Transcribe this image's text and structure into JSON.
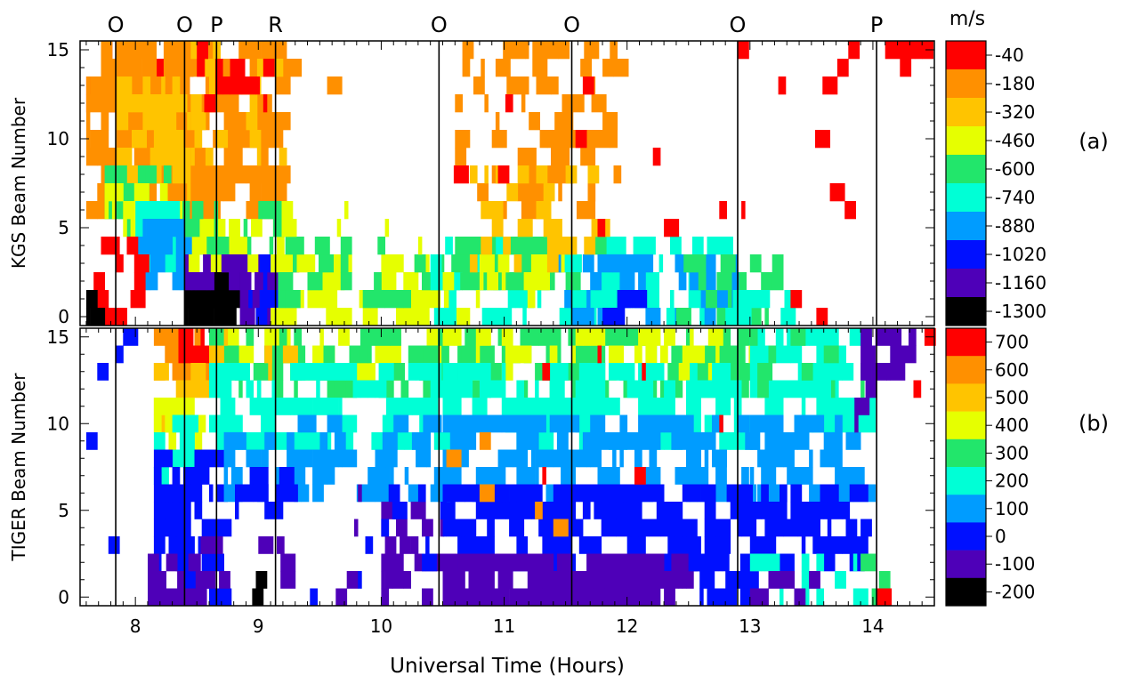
{
  "chart_data": [
    {
      "type": "heatmap",
      "panel": "(a)",
      "ylabel": "KGS Beam Number",
      "xlabel": "",
      "xlim": [
        7.55,
        14.5
      ],
      "ylim": [
        -0.5,
        15.5
      ],
      "xticks": [
        8,
        9,
        10,
        11,
        12,
        13,
        14
      ],
      "yticks": [
        0,
        5,
        10,
        15
      ],
      "colorbar": {
        "unit": "m/s",
        "levels": [
          "-40",
          "-180",
          "-320",
          "-460",
          "-600",
          "-740",
          "-880",
          "-1020",
          "-1160",
          "-1300"
        ],
        "colors": [
          "#ff0000",
          "#ff9000",
          "#ffc400",
          "#e6ff00",
          "#22e66b",
          "#00ffd6",
          "#009cff",
          "#0010ff",
          "#4e00b8",
          "#000000"
        ]
      },
      "regions": [
        {
          "x": [
            7.6,
            8.45
          ],
          "y": [
            12,
            15
          ],
          "level": "-40",
          "density": 0.6
        },
        {
          "x": [
            7.6,
            8.45
          ],
          "y": [
            6,
            15
          ],
          "level": "-180",
          "density": 0.75
        },
        {
          "x": [
            7.85,
            8.45
          ],
          "y": [
            6,
            13
          ],
          "level": "-320",
          "density": 0.5
        },
        {
          "x": [
            8.45,
            9.2
          ],
          "y": [
            6,
            15
          ],
          "level": "-180",
          "density": 0.8
        },
        {
          "x": [
            8.45,
            9.2
          ],
          "y": [
            9,
            15
          ],
          "level": "-320",
          "density": 0.35
        },
        {
          "x": [
            8.5,
            9.05
          ],
          "y": [
            11,
            15
          ],
          "level": "-40",
          "density": 0.3
        },
        {
          "x": [
            7.75,
            8.35
          ],
          "y": [
            5,
            8
          ],
          "level": "-600",
          "density": 0.55
        },
        {
          "x": [
            7.75,
            8.35
          ],
          "y": [
            5,
            7
          ],
          "level": "-460",
          "density": 0.4
        },
        {
          "x": [
            8.0,
            8.45
          ],
          "y": [
            3,
            6
          ],
          "level": "-740",
          "density": 0.7
        },
        {
          "x": [
            8.0,
            8.5
          ],
          "y": [
            2,
            5
          ],
          "level": "-880",
          "density": 0.7
        },
        {
          "x": [
            8.4,
            9.2
          ],
          "y": [
            3,
            5
          ],
          "level": "-460",
          "density": 0.6
        },
        {
          "x": [
            8.4,
            9.2
          ],
          "y": [
            4,
            6
          ],
          "level": "-600",
          "density": 0.4
        },
        {
          "x": [
            7.6,
            8.0
          ],
          "y": [
            0,
            4
          ],
          "level": "-40",
          "density": 0.45
        },
        {
          "x": [
            7.6,
            7.7
          ],
          "y": [
            0,
            1
          ],
          "level": "-1300",
          "density": 0.7
        },
        {
          "x": [
            8.4,
            8.9
          ],
          "y": [
            1,
            2
          ],
          "level": "-1300",
          "density": 0.95
        },
        {
          "x": [
            8.4,
            8.9
          ],
          "y": [
            0,
            1
          ],
          "level": "-1300",
          "density": 0.8
        },
        {
          "x": [
            8.4,
            8.9
          ],
          "y": [
            2,
            3
          ],
          "level": "-1160",
          "density": 0.7
        },
        {
          "x": [
            8.85,
            9.25
          ],
          "y": [
            0,
            3
          ],
          "level": "-1160",
          "density": 0.6
        },
        {
          "x": [
            8.8,
            9.3
          ],
          "y": [
            0,
            3
          ],
          "level": "-1020",
          "density": 0.35
        },
        {
          "x": [
            9.1,
            10.6
          ],
          "y": [
            0,
            3
          ],
          "level": "-460",
          "density": 0.55
        },
        {
          "x": [
            9.1,
            10.6
          ],
          "y": [
            1,
            4
          ],
          "level": "-600",
          "density": 0.3
        },
        {
          "x": [
            9.1,
            10.5
          ],
          "y": [
            3,
            6
          ],
          "level": "-460",
          "density": 0.12
        },
        {
          "x": [
            10.4,
            12.9
          ],
          "y": [
            0,
            4
          ],
          "level": "-740",
          "density": 0.55
        },
        {
          "x": [
            10.6,
            11.8
          ],
          "y": [
            2,
            4
          ],
          "level": "-600",
          "density": 0.55
        },
        {
          "x": [
            10.5,
            11.4
          ],
          "y": [
            1,
            3
          ],
          "level": "-460",
          "density": 0.35
        },
        {
          "x": [
            11.4,
            12.9
          ],
          "y": [
            0,
            3
          ],
          "level": "-880",
          "density": 0.4
        },
        {
          "x": [
            11.8,
            12.1
          ],
          "y": [
            0,
            1
          ],
          "level": "-1020",
          "density": 0.6
        },
        {
          "x": [
            12.4,
            13.2
          ],
          "y": [
            0,
            3
          ],
          "level": "-600",
          "density": 0.4
        },
        {
          "x": [
            12.8,
            13.3
          ],
          "y": [
            0,
            1
          ],
          "level": "-740",
          "density": 0.5
        },
        {
          "x": [
            10.6,
            11.9
          ],
          "y": [
            6,
            15
          ],
          "level": "-180",
          "density": 0.35
        },
        {
          "x": [
            10.6,
            11.9
          ],
          "y": [
            3,
            8
          ],
          "level": "-320",
          "density": 0.25
        },
        {
          "x": [
            9.2,
            9.8
          ],
          "y": [
            12,
            15
          ],
          "level": "-180",
          "density": 0.07
        },
        {
          "x": [
            10.5,
            14.0
          ],
          "y": [
            3,
            15
          ],
          "level": "-40",
          "density": 0.045
        },
        {
          "x": [
            13.8,
            14.45
          ],
          "y": [
            14,
            15
          ],
          "level": "-40",
          "density": 0.35
        },
        {
          "x": [
            13.3,
            13.6
          ],
          "y": [
            0,
            1
          ],
          "level": "-40",
          "density": 0.3
        }
      ]
    },
    {
      "type": "heatmap",
      "panel": "(b)",
      "ylabel": "TIGER Beam Number",
      "xlabel": "Universal Time (Hours)",
      "xlim": [
        7.55,
        14.5
      ],
      "ylim": [
        -0.5,
        15.5
      ],
      "xticks": [
        8,
        9,
        10,
        11,
        12,
        13,
        14
      ],
      "yticks": [
        0,
        5,
        10,
        15
      ],
      "colorbar": {
        "unit": "",
        "levels": [
          "700",
          "600",
          "500",
          "400",
          "300",
          "200",
          "100",
          "0",
          "-100",
          "-200"
        ],
        "colors": [
          "#ff0000",
          "#ff9000",
          "#ffc400",
          "#e6ff00",
          "#22e66b",
          "#00ffd6",
          "#009cff",
          "#0010ff",
          "#4e00b8",
          "#000000"
        ]
      },
      "regions": [
        {
          "x": [
            8.15,
            8.6
          ],
          "y": [
            13,
            15
          ],
          "level": "600",
          "density": 0.7
        },
        {
          "x": [
            8.35,
            8.6
          ],
          "y": [
            13,
            15
          ],
          "level": "700",
          "density": 0.7
        },
        {
          "x": [
            8.15,
            8.5
          ],
          "y": [
            10,
            13
          ],
          "level": "500",
          "density": 0.55
        },
        {
          "x": [
            8.15,
            8.5
          ],
          "y": [
            9,
            11
          ],
          "level": "400",
          "density": 0.5
        },
        {
          "x": [
            8.15,
            8.45
          ],
          "y": [
            7,
            10
          ],
          "level": "200",
          "density": 0.6
        },
        {
          "x": [
            8.15,
            8.7
          ],
          "y": [
            0,
            8
          ],
          "level": "0",
          "density": 0.7
        },
        {
          "x": [
            8.1,
            8.5
          ],
          "y": [
            0,
            2
          ],
          "level": "-100",
          "density": 0.6
        },
        {
          "x": [
            8.6,
            10.5
          ],
          "y": [
            13,
            15
          ],
          "level": "400",
          "density": 0.4
        },
        {
          "x": [
            8.6,
            10.5
          ],
          "y": [
            12,
            15
          ],
          "level": "300",
          "density": 0.5
        },
        {
          "x": [
            8.6,
            9.2
          ],
          "y": [
            13,
            15
          ],
          "level": "500",
          "density": 0.3
        },
        {
          "x": [
            8.6,
            10.5
          ],
          "y": [
            9,
            13
          ],
          "level": "200",
          "density": 0.6
        },
        {
          "x": [
            8.6,
            10.5
          ],
          "y": [
            6,
            10
          ],
          "level": "100",
          "density": 0.55
        },
        {
          "x": [
            8.6,
            9.2
          ],
          "y": [
            5,
            8
          ],
          "level": "0",
          "density": 0.3
        },
        {
          "x": [
            9.0,
            9.25
          ],
          "y": [
            0,
            3
          ],
          "level": "-100",
          "density": 0.5
        },
        {
          "x": [
            8.5,
            8.8
          ],
          "y": [
            1,
            3
          ],
          "level": "-100",
          "density": 0.5
        },
        {
          "x": [
            8.95,
            9.05
          ],
          "y": [
            0,
            1
          ],
          "level": "-200",
          "density": 0.8
        },
        {
          "x": [
            10.0,
            10.5
          ],
          "y": [
            0,
            5
          ],
          "level": "-100",
          "density": 0.6
        },
        {
          "x": [
            10.0,
            10.5
          ],
          "y": [
            2,
            6
          ],
          "level": "0",
          "density": 0.3
        },
        {
          "x": [
            10.5,
            13.0
          ],
          "y": [
            12,
            15
          ],
          "level": "300",
          "density": 0.5
        },
        {
          "x": [
            10.5,
            13.0
          ],
          "y": [
            13,
            15
          ],
          "level": "400",
          "density": 0.35
        },
        {
          "x": [
            10.5,
            13.0
          ],
          "y": [
            9,
            13
          ],
          "level": "200",
          "density": 0.55
        },
        {
          "x": [
            10.5,
            13.0
          ],
          "y": [
            6,
            10
          ],
          "level": "100",
          "density": 0.6
        },
        {
          "x": [
            10.5,
            13.0
          ],
          "y": [
            2,
            6
          ],
          "level": "0",
          "density": 0.7
        },
        {
          "x": [
            10.5,
            12.5
          ],
          "y": [
            0,
            2
          ],
          "level": "-100",
          "density": 0.85
        },
        {
          "x": [
            12.5,
            13.0
          ],
          "y": [
            0,
            2
          ],
          "level": "0",
          "density": 0.6
        },
        {
          "x": [
            10.5,
            13.0
          ],
          "y": [
            6,
            14
          ],
          "level": "700",
          "density": 0.04
        },
        {
          "x": [
            10.5,
            13.0
          ],
          "y": [
            4,
            9
          ],
          "level": "600",
          "density": 0.03
        },
        {
          "x": [
            13.0,
            13.9
          ],
          "y": [
            10,
            15
          ],
          "level": "200",
          "density": 0.6
        },
        {
          "x": [
            13.0,
            13.9
          ],
          "y": [
            12,
            15
          ],
          "level": "300",
          "density": 0.35
        },
        {
          "x": [
            13.0,
            13.9
          ],
          "y": [
            6,
            10
          ],
          "level": "100",
          "density": 0.6
        },
        {
          "x": [
            13.0,
            13.9
          ],
          "y": [
            2,
            6
          ],
          "level": "0",
          "density": 0.5
        },
        {
          "x": [
            13.0,
            13.9
          ],
          "y": [
            0,
            2
          ],
          "level": "200",
          "density": 0.4
        },
        {
          "x": [
            13.0,
            13.6
          ],
          "y": [
            0,
            3
          ],
          "level": "-100",
          "density": 0.3
        },
        {
          "x": [
            13.9,
            14.3
          ],
          "y": [
            13,
            15
          ],
          "level": "-100",
          "density": 0.6
        },
        {
          "x": [
            13.85,
            14.0
          ],
          "y": [
            10,
            12
          ],
          "level": "-100",
          "density": 0.4
        },
        {
          "x": [
            13.9,
            14.1
          ],
          "y": [
            0,
            2
          ],
          "level": "300",
          "density": 0.3
        },
        {
          "x": [
            7.6,
            8.1
          ],
          "y": [
            0,
            15
          ],
          "level": "0",
          "density": 0.05
        },
        {
          "x": [
            7.6,
            8.1
          ],
          "y": [
            0,
            15
          ],
          "level": "700",
          "density": 0.025
        },
        {
          "x": [
            9.3,
            10.0
          ],
          "y": [
            0,
            6
          ],
          "level": "-100",
          "density": 0.05
        },
        {
          "x": [
            9.3,
            10.0
          ],
          "y": [
            0,
            6
          ],
          "level": "0",
          "density": 0.04
        },
        {
          "x": [
            14.0,
            14.45
          ],
          "y": [
            0,
            15
          ],
          "level": "700",
          "density": 0.02
        }
      ]
    }
  ],
  "events": [
    {
      "label": "O",
      "x": 7.84
    },
    {
      "label": "O",
      "x": 8.4
    },
    {
      "label": "P",
      "x": 8.66
    },
    {
      "label": "R",
      "x": 9.14
    },
    {
      "label": "O",
      "x": 10.47
    },
    {
      "label": "O",
      "x": 11.55
    },
    {
      "label": "O",
      "x": 12.9
    },
    {
      "label": "P",
      "x": 14.03
    }
  ]
}
